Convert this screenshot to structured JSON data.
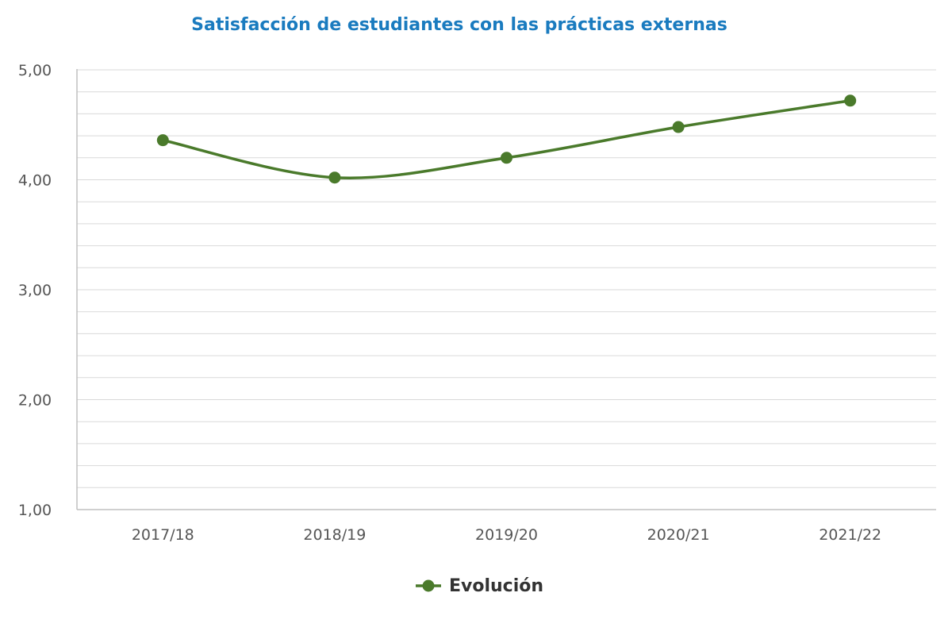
{
  "chart_data": {
    "type": "line",
    "title": "Satisfacción de estudiantes con las prácticas externas",
    "xlabel": "",
    "ylabel": "",
    "categories": [
      "2017/18",
      "2018/19",
      "2019/20",
      "2020/21",
      "2021/22"
    ],
    "series": [
      {
        "name": "Evolución",
        "values": [
          4.36,
          4.02,
          4.2,
          4.48,
          4.72
        ]
      }
    ],
    "ylim": [
      1,
      5
    ],
    "yticks": [
      "1,00",
      "2,00",
      "3,00",
      "4,00",
      "5,00"
    ],
    "grid": true,
    "legend": "bottom-center",
    "smooth": true
  },
  "colors": {
    "title": "#1a7bbf",
    "series": "#4a7a2b",
    "grid": "#d9d9d9",
    "axis": "#c0c0c0",
    "tick_label": "#555555",
    "legend_text": "#333333"
  }
}
